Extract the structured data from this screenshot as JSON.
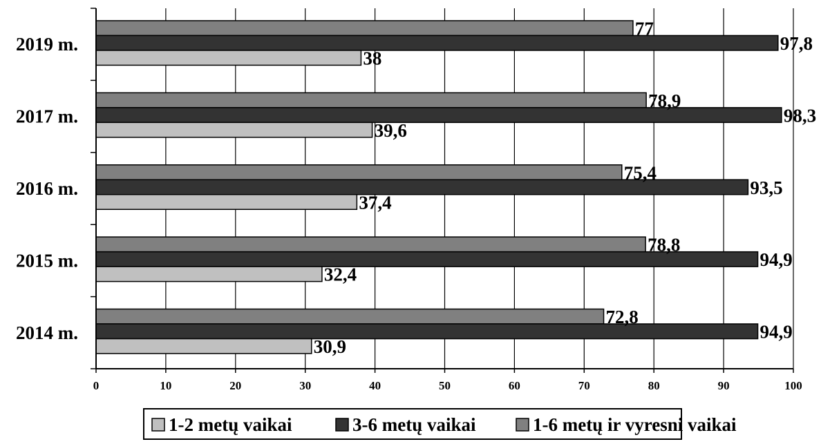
{
  "chart_data": {
    "type": "bar",
    "orientation": "horizontal",
    "categories": [
      "2014 m.",
      "2015 m.",
      "2016 m.",
      "2017 m.",
      "2019 m."
    ],
    "series": [
      {
        "name": "1-2 metų vaikai",
        "color": "#c0c0c0",
        "values": [
          30.9,
          32.4,
          37.4,
          39.6,
          38
        ],
        "labels": [
          "30,9",
          "32,4",
          "37,4",
          "39,6",
          "38"
        ]
      },
      {
        "name": "3-6 metų vaikai",
        "color": "#333333",
        "values": [
          94.9,
          94.9,
          93.5,
          98.3,
          97.8
        ],
        "labels": [
          "94,9",
          "94,9",
          "93,5",
          "98,3",
          "97,8"
        ]
      },
      {
        "name": "1-6 metų ir vyresni vaikai",
        "color": "#808080",
        "values": [
          72.8,
          78.8,
          75.4,
          78.9,
          77
        ],
        "labels": [
          "72,8",
          "78,8",
          "75,4",
          "78,9",
          "77"
        ]
      }
    ],
    "xlim": [
      0,
      100
    ],
    "xticks": [
      "0",
      "10",
      "20",
      "30",
      "40",
      "50",
      "60",
      "70",
      "80",
      "90",
      "100"
    ],
    "grid": "vertical",
    "legend_position": "bottom"
  }
}
